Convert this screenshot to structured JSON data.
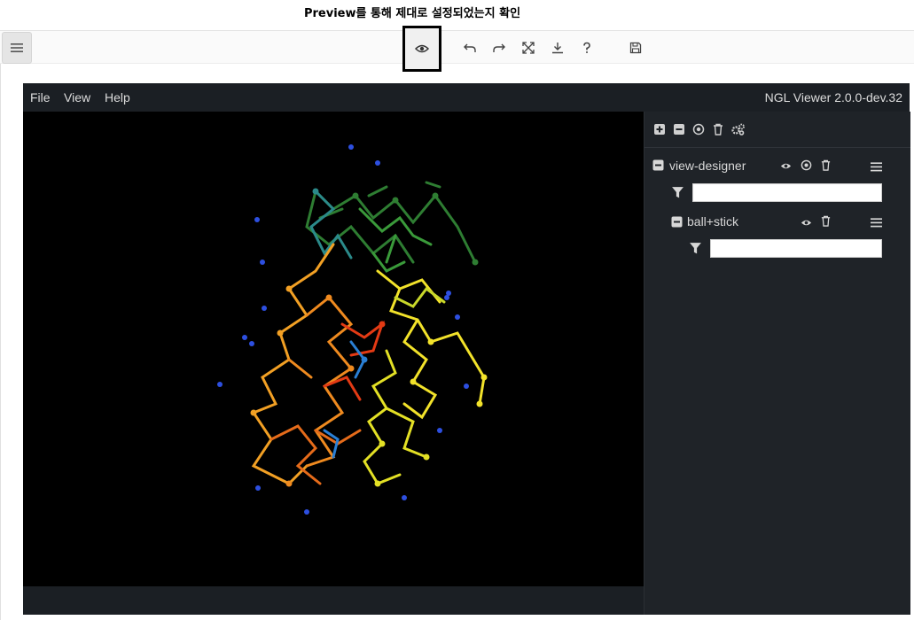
{
  "caption": "Preview를 통해 제대로 설정되었는지 확인",
  "toolbar": {
    "menu_icon": "hamburger-icon",
    "preview_icon": "eye-icon",
    "buttons": [
      "undo-icon",
      "redo-icon",
      "fullscreen-icon",
      "download-icon",
      "help-icon",
      "save-icon"
    ]
  },
  "ngl": {
    "menu": {
      "file": "File",
      "view": "View",
      "help": "Help"
    },
    "version": "NGL Viewer 2.0.0-dev.32",
    "panel": {
      "component": {
        "name": "view-designer",
        "filter_value": ""
      },
      "representation": {
        "name": "ball+stick",
        "filter_value": ""
      }
    }
  },
  "colors": {
    "background": "#000000",
    "panel": "#1f2328",
    "accent": "#2a7fd4"
  }
}
